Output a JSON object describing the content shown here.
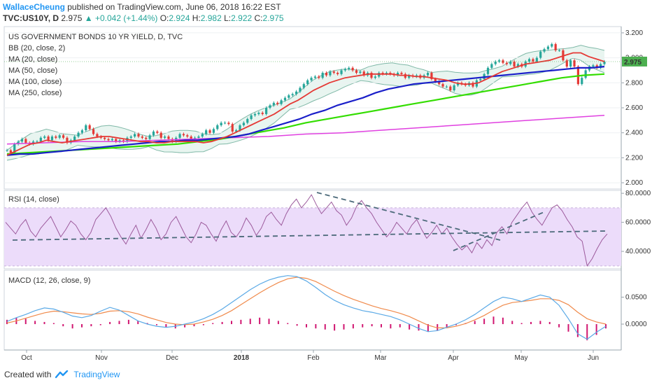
{
  "header": {
    "author": "WallaceCheung",
    "published": "published on TradingView.com, June 06, 2018 16:22 EST",
    "symbol": "TVC:US10Y, D",
    "last": "2.975",
    "change": "▲ +0.042 (+1.44%)",
    "ohlc": [
      {
        "label": "O:",
        "value": "2.924"
      },
      {
        "label": "H:",
        "value": "2.982"
      },
      {
        "label": "L:",
        "value": "2.922"
      },
      {
        "label": "C:",
        "value": "2.975"
      }
    ]
  },
  "footer": {
    "created_with": "Created with",
    "brand": "TradingView"
  },
  "colors": {
    "ma20": "#e53935",
    "ma50": "#1a1fc9",
    "ma100": "#33dd00",
    "ma250": "#e040e0",
    "bb": "#7fb8a7",
    "bb_fill": "#e8f5f0",
    "rsi": "#9c5a9c",
    "rsi_band": "#ecdcfa",
    "macd": "#5aa9e6",
    "signal": "#f08a4b",
    "hist": "#d01670",
    "candle_up": "#26a69a",
    "candle_down": "#e53935",
    "price_tag": "#4caf50"
  },
  "chart_data": [
    {
      "type": "line",
      "title": "US GOVERNMENT BONDS 10 YR YIELD, D, TVC",
      "legend": [
        "BB (20, close, 2)",
        "MA (20, close)",
        "MA (50, close)",
        "MA (100, close)",
        "MA (250, close)"
      ],
      "ylim": [
        1.95,
        3.25
      ],
      "yticks": [
        "3.200",
        "3.000",
        "2.800",
        "2.600",
        "2.400",
        "2.200",
        "2.000"
      ],
      "last_price_label": "2.975",
      "x_labels": [
        "Oct",
        "Nov",
        "Dec",
        "2018",
        "Feb",
        "Mar",
        "Apr",
        "May",
        "Jun"
      ],
      "series": [
        {
          "name": "Close",
          "values": [
            2.26,
            2.24,
            2.31,
            2.33,
            2.35,
            2.32,
            2.31,
            2.33,
            2.33,
            2.36,
            2.37,
            2.34,
            2.37,
            2.36,
            2.38,
            2.36,
            2.32,
            2.34,
            2.37,
            2.4,
            2.42,
            2.46,
            2.43,
            2.39,
            2.37,
            2.36,
            2.35,
            2.34,
            2.35,
            2.33,
            2.34,
            2.33,
            2.36,
            2.37,
            2.39,
            2.37,
            2.36,
            2.35,
            2.38,
            2.41,
            2.4,
            2.36,
            2.37,
            2.35,
            2.33,
            2.36,
            2.39,
            2.38,
            2.37,
            2.35,
            2.36,
            2.37,
            2.39,
            2.42,
            2.4,
            2.43,
            2.46,
            2.48,
            2.48,
            2.47,
            2.41,
            2.42,
            2.46,
            2.48,
            2.51,
            2.54,
            2.55,
            2.56,
            2.55,
            2.6,
            2.62,
            2.64,
            2.63,
            2.66,
            2.68,
            2.7,
            2.71,
            2.73,
            2.76,
            2.79,
            2.82,
            2.84,
            2.85,
            2.84,
            2.88,
            2.86,
            2.89,
            2.88,
            2.87,
            2.9,
            2.91,
            2.92,
            2.9,
            2.88,
            2.89,
            2.86,
            2.88,
            2.84,
            2.85,
            2.88,
            2.87,
            2.88,
            2.87,
            2.86,
            2.88,
            2.87,
            2.84,
            2.86,
            2.85,
            2.86,
            2.84,
            2.86,
            2.88,
            2.83,
            2.81,
            2.79,
            2.77,
            2.77,
            2.74,
            2.78,
            2.8,
            2.79,
            2.78,
            2.8,
            2.77,
            2.82,
            2.83,
            2.87,
            2.92,
            2.95,
            2.97,
            2.98,
            2.96,
            2.95,
            2.97,
            2.93,
            2.95,
            2.93,
            2.97,
            2.99,
            2.97,
            3.0,
            3.05,
            3.07,
            3.09,
            3.11,
            3.06,
            3.06,
            2.98,
            2.93,
            2.98,
            2.93,
            2.79,
            2.84,
            2.9,
            2.93,
            2.94,
            2.92,
            2.95,
            2.97
          ]
        },
        {
          "name": "MA (20, close)",
          "values": [
            2.22,
            2.25,
            2.28,
            2.31,
            2.32,
            2.34,
            2.33,
            2.32,
            2.33,
            2.34,
            2.35,
            2.36,
            2.37,
            2.37,
            2.36,
            2.35,
            2.34,
            2.33,
            2.33,
            2.32,
            2.32,
            2.33,
            2.33,
            2.33,
            2.33,
            2.32,
            2.33,
            2.35,
            2.37,
            2.4,
            2.43,
            2.46,
            2.49,
            2.52,
            2.55,
            2.59,
            2.63,
            2.66,
            2.7,
            2.74,
            2.77,
            2.8,
            2.82,
            2.84,
            2.85,
            2.86,
            2.87,
            2.87,
            2.87,
            2.87,
            2.86,
            2.86,
            2.85,
            2.85,
            2.84,
            2.83,
            2.82,
            2.8,
            2.79,
            2.79,
            2.8,
            2.83,
            2.86,
            2.89,
            2.91,
            2.93,
            2.95,
            2.96,
            2.97,
            2.98,
            3.0,
            3.02,
            3.04,
            3.04,
            3.01,
            2.99,
            2.97
          ]
        },
        {
          "name": "MA (50, close)",
          "values": [
            2.22,
            2.23,
            2.23,
            2.24,
            2.25,
            2.26,
            2.27,
            2.28,
            2.29,
            2.3,
            2.31,
            2.32,
            2.33,
            2.33,
            2.34,
            2.34,
            2.35,
            2.36,
            2.37,
            2.39,
            2.42,
            2.45,
            2.48,
            2.51,
            2.55,
            2.58,
            2.62,
            2.65,
            2.68,
            2.72,
            2.75,
            2.77,
            2.79,
            2.8,
            2.81,
            2.82,
            2.83,
            2.84,
            2.85,
            2.86,
            2.87,
            2.88,
            2.89,
            2.9,
            2.91,
            2.92,
            2.92,
            2.93
          ]
        },
        {
          "name": "MA (100, close)",
          "values": [
            2.23,
            2.24,
            2.25,
            2.26,
            2.27,
            2.28,
            2.29,
            2.3,
            2.31,
            2.33,
            2.35,
            2.38,
            2.41,
            2.44,
            2.48,
            2.51,
            2.54,
            2.57,
            2.6,
            2.63,
            2.66,
            2.69,
            2.72,
            2.75,
            2.78,
            2.81,
            2.84,
            2.86,
            2.87
          ]
        },
        {
          "name": "MA (250, close)",
          "values": [
            2.31,
            2.32,
            2.33,
            2.33,
            2.34,
            2.35,
            2.36,
            2.37,
            2.39,
            2.4,
            2.42,
            2.44,
            2.46,
            2.48,
            2.5,
            2.52,
            2.54
          ]
        }
      ]
    },
    {
      "type": "line",
      "title": "RSI (14, close)",
      "ylim": [
        28,
        82
      ],
      "yticks": [
        "80.0000",
        "60.0000",
        "40.0000"
      ],
      "band": [
        30,
        70
      ],
      "series": [
        {
          "name": "RSI",
          "values": [
            60,
            56,
            52,
            58,
            62,
            54,
            50,
            56,
            60,
            64,
            57,
            50,
            55,
            61,
            58,
            52,
            48,
            53,
            62,
            66,
            70,
            64,
            56,
            50,
            45,
            52,
            58,
            49,
            55,
            62,
            56,
            48,
            52,
            60,
            64,
            57,
            50,
            46,
            52,
            60,
            58,
            52,
            47,
            55,
            61,
            53,
            50,
            55,
            63,
            58,
            51,
            56,
            64,
            67,
            62,
            58,
            66,
            72,
            76,
            70,
            74,
            79,
            72,
            66,
            70,
            74,
            68,
            65,
            58,
            63,
            71,
            75,
            70,
            66,
            60,
            55,
            50,
            54,
            60,
            56,
            52,
            58,
            62,
            55,
            49,
            53,
            58,
            52,
            56,
            50,
            45,
            41,
            44,
            39,
            46,
            42,
            48,
            44,
            53,
            57,
            52,
            60,
            65,
            70,
            74,
            67,
            62,
            58,
            64,
            70,
            72,
            68,
            62,
            57,
            50,
            47,
            30,
            35,
            42,
            48,
            52
          ]
        }
      ]
    },
    {
      "type": "line",
      "title": "MACD (12, 26, close, 9)",
      "ylim": [
        -0.048,
        0.1
      ],
      "yticks": [
        "0.0500",
        "0.0000"
      ],
      "series": [
        {
          "name": "MACD",
          "values": [
            0.005,
            0.012,
            0.018,
            0.025,
            0.03,
            0.028,
            0.022,
            0.015,
            0.012,
            0.016,
            0.024,
            0.031,
            0.026,
            0.016,
            0.006,
            0.0,
            -0.004,
            -0.006,
            -0.004,
            0.0,
            0.004,
            0.01,
            0.018,
            0.028,
            0.04,
            0.052,
            0.064,
            0.074,
            0.082,
            0.087,
            0.09,
            0.088,
            0.08,
            0.068,
            0.055,
            0.044,
            0.036,
            0.03,
            0.025,
            0.022,
            0.018,
            0.014,
            0.008,
            0.0,
            -0.008,
            -0.014,
            -0.012,
            -0.006,
            0.0,
            0.008,
            0.018,
            0.03,
            0.042,
            0.05,
            0.047,
            0.042,
            0.048,
            0.054,
            0.05,
            0.035,
            0.01,
            -0.018,
            -0.028,
            -0.015,
            -0.004
          ]
        },
        {
          "name": "Signal",
          "values": [
            0.002,
            0.006,
            0.011,
            0.016,
            0.021,
            0.024,
            0.023,
            0.021,
            0.019,
            0.018,
            0.02,
            0.024,
            0.025,
            0.023,
            0.019,
            0.013,
            0.008,
            0.003,
            0.0,
            -0.001,
            0.0,
            0.004,
            0.009,
            0.016,
            0.025,
            0.036,
            0.047,
            0.058,
            0.068,
            0.077,
            0.084,
            0.087,
            0.085,
            0.079,
            0.07,
            0.061,
            0.053,
            0.046,
            0.04,
            0.034,
            0.029,
            0.025,
            0.02,
            0.014,
            0.006,
            -0.002,
            -0.007,
            -0.007,
            -0.004,
            0.001,
            0.008,
            0.016,
            0.026,
            0.035,
            0.04,
            0.042,
            0.044,
            0.047,
            0.047,
            0.044,
            0.036,
            0.022,
            0.01,
            0.004,
            0.0
          ]
        },
        {
          "name": "Histogram",
          "values": [
            0.008,
            0.012,
            0.01,
            0.006,
            0.004,
            0.002,
            -0.004,
            -0.008,
            -0.006,
            -0.004,
            -0.002,
            0.004,
            0.006,
            0.008,
            0.006,
            0.002,
            -0.002,
            -0.006,
            -0.008,
            -0.006,
            -0.004,
            -0.002,
            0.002,
            0.004,
            0.006,
            0.008,
            0.01,
            0.012,
            0.01,
            0.006,
            0.002,
            -0.003,
            -0.006,
            -0.008,
            -0.01,
            -0.012,
            -0.01,
            -0.008,
            -0.006,
            -0.004,
            -0.006,
            -0.008,
            -0.006,
            -0.01,
            -0.012,
            -0.014,
            -0.012,
            -0.006,
            -0.002,
            0.002,
            0.006,
            0.01,
            0.014,
            0.012,
            0.006,
            0.002,
            0.004,
            0.006,
            0.004,
            -0.006,
            -0.014,
            -0.024,
            -0.03,
            -0.02,
            -0.008
          ]
        }
      ]
    }
  ]
}
